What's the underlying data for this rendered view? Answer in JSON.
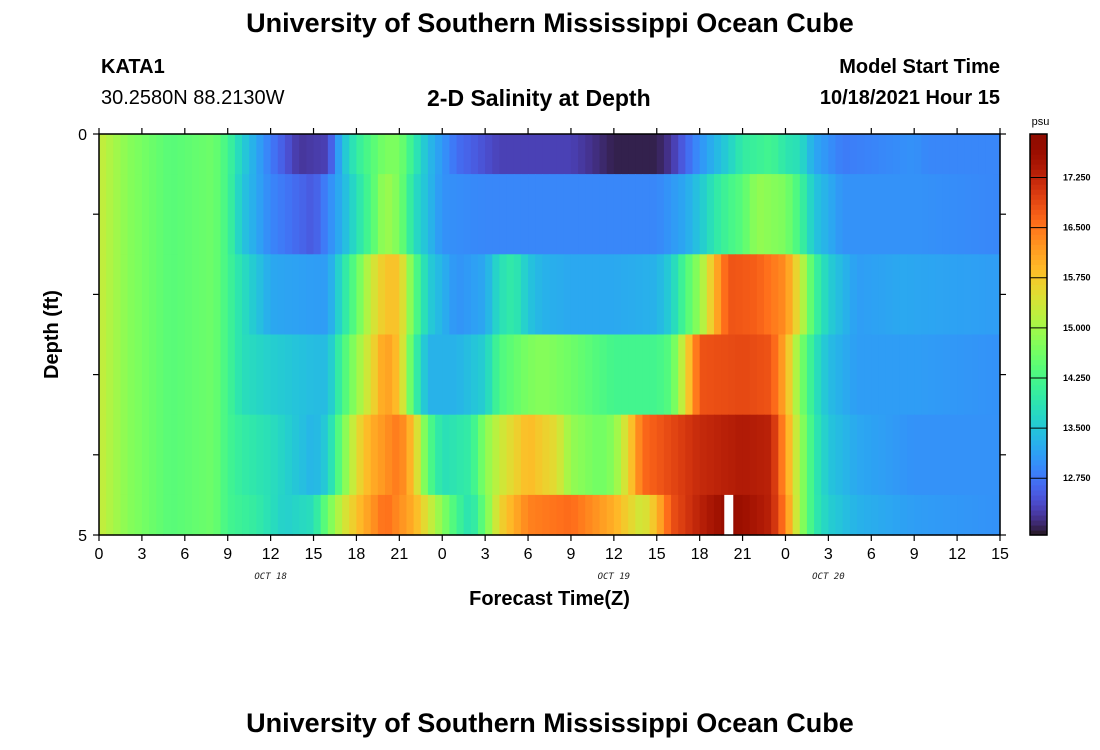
{
  "header": {
    "title": "University of Southern Mississippi Ocean Cube",
    "station": "KATA1",
    "coords": "30.2580N  88.2130W",
    "plot_title": "2-D Salinity at Depth",
    "model_label": "Model Start Time",
    "model_time": "10/18/2021 Hour 15"
  },
  "footer": {
    "title": "University of Southern Mississippi Ocean Cube"
  },
  "colors": {
    "missing": "#ffffff",
    "frame": "#000000"
  },
  "chart_data": {
    "type": "heatmap",
    "title": "2-D Salinity at Depth",
    "xlabel": "Forecast Time(Z)",
    "ylabel": "Depth (ft)",
    "unit": "psu",
    "x_range_hours": [
      0,
      63
    ],
    "y_range": [
      0,
      5
    ],
    "x_tick_hours": [
      0,
      3,
      6,
      9,
      12,
      15,
      18,
      21,
      24,
      27,
      30,
      33,
      36,
      39,
      42,
      45,
      48,
      51,
      54,
      57,
      60,
      63
    ],
    "x_tick_labels": [
      "0",
      "3",
      "6",
      "9",
      "12",
      "15",
      "18",
      "21",
      "0",
      "3",
      "6",
      "9",
      "12",
      "15",
      "18",
      "21",
      "0",
      "3",
      "6",
      "9",
      "12",
      "15"
    ],
    "y_tick_labels": [
      "0",
      "5"
    ],
    "date_labels": [
      {
        "text": "OCT 18",
        "hour": 12
      },
      {
        "text": "OCT 19",
        "hour": 36
      },
      {
        "text": "OCT 20",
        "hour": 51
      }
    ],
    "colorbar": {
      "min": 11.9,
      "max": 17.9,
      "ticks": [
        "12.750",
        "13.500",
        "14.250",
        "15.000",
        "15.750",
        "16.500",
        "17.250"
      ],
      "tick_values": [
        12.75,
        13.5,
        14.25,
        15.0,
        15.75,
        16.5,
        17.25
      ],
      "colormap": "turbo"
    },
    "layers": [
      {
        "depth_top": 0,
        "depth_bottom": 0.5,
        "keyframes": [
          [
            0,
            15.3
          ],
          [
            2,
            14.8
          ],
          [
            5,
            14.4
          ],
          [
            8,
            14.6
          ],
          [
            9,
            14.2
          ],
          [
            10,
            13.6
          ],
          [
            12,
            12.8
          ],
          [
            14,
            12.2
          ],
          [
            16,
            12.3
          ],
          [
            17,
            13.4
          ],
          [
            18,
            14.0
          ],
          [
            20,
            14.7
          ],
          [
            21,
            14.7
          ],
          [
            22,
            14.0
          ],
          [
            23,
            13.4
          ],
          [
            25,
            12.7
          ],
          [
            28,
            12.3
          ],
          [
            33,
            12.3
          ],
          [
            36,
            12.0
          ],
          [
            39,
            12.0
          ],
          [
            40,
            12.2
          ],
          [
            41,
            12.6
          ],
          [
            42,
            13.0
          ],
          [
            43,
            13.3
          ],
          [
            44,
            13.6
          ],
          [
            45,
            14.0
          ],
          [
            47,
            14.2
          ],
          [
            48,
            13.9
          ],
          [
            49,
            13.8
          ],
          [
            50,
            13.2
          ],
          [
            52,
            12.8
          ],
          [
            57,
            13.0
          ],
          [
            58,
            12.9
          ],
          [
            63,
            12.9
          ]
        ]
      },
      {
        "depth_top": 0.5,
        "depth_bottom": 1.5,
        "keyframes": [
          [
            0,
            15.3
          ],
          [
            2,
            14.8
          ],
          [
            5,
            14.4
          ],
          [
            8,
            14.6
          ],
          [
            9,
            14.2
          ],
          [
            10,
            13.5
          ],
          [
            12,
            12.9
          ],
          [
            15,
            12.5
          ],
          [
            17,
            13.3
          ],
          [
            19,
            14.3
          ],
          [
            20,
            15.0
          ],
          [
            21,
            14.7
          ],
          [
            22,
            13.8
          ],
          [
            24,
            13.0
          ],
          [
            27,
            12.9
          ],
          [
            33,
            12.9
          ],
          [
            39,
            12.9
          ],
          [
            41,
            13.2
          ],
          [
            42,
            13.5
          ],
          [
            43,
            13.9
          ],
          [
            44,
            14.2
          ],
          [
            45,
            14.4
          ],
          [
            46,
            14.9
          ],
          [
            48,
            14.7
          ],
          [
            49,
            14.2
          ],
          [
            50,
            13.5
          ],
          [
            52,
            13.0
          ],
          [
            57,
            13.0
          ],
          [
            63,
            12.9
          ]
        ]
      },
      {
        "depth_top": 1.5,
        "depth_bottom": 2.5,
        "keyframes": [
          [
            0,
            15.3
          ],
          [
            2,
            14.8
          ],
          [
            5,
            14.4
          ],
          [
            8,
            14.6
          ],
          [
            9,
            14.2
          ],
          [
            10,
            13.8
          ],
          [
            12,
            13.2
          ],
          [
            15,
            13.1
          ],
          [
            16,
            13.1
          ],
          [
            17,
            13.8
          ],
          [
            18,
            14.5
          ],
          [
            19,
            15.3
          ],
          [
            20,
            15.8
          ],
          [
            21,
            15.8
          ],
          [
            22,
            14.5
          ],
          [
            23,
            13.6
          ],
          [
            25,
            13.0
          ],
          [
            27,
            13.2
          ],
          [
            28,
            13.8
          ],
          [
            29,
            14.0
          ],
          [
            30,
            13.5
          ],
          [
            31,
            13.3
          ],
          [
            33,
            13.2
          ],
          [
            36,
            13.2
          ],
          [
            39,
            13.3
          ],
          [
            40,
            13.6
          ],
          [
            41,
            14.3
          ],
          [
            42,
            14.9
          ],
          [
            43,
            15.9
          ],
          [
            44,
            16.8
          ],
          [
            46,
            16.7
          ],
          [
            48,
            16.3
          ],
          [
            49,
            15.4
          ],
          [
            50,
            14.2
          ],
          [
            51,
            13.6
          ],
          [
            53,
            13.1
          ],
          [
            56,
            13.2
          ],
          [
            63,
            13.1
          ]
        ]
      },
      {
        "depth_top": 2.5,
        "depth_bottom": 3.5,
        "keyframes": [
          [
            0,
            15.3
          ],
          [
            2,
            14.8
          ],
          [
            5,
            14.4
          ],
          [
            8,
            14.6
          ],
          [
            9,
            14.2
          ],
          [
            10,
            13.8
          ],
          [
            12,
            13.6
          ],
          [
            15,
            13.4
          ],
          [
            16,
            13.4
          ],
          [
            17,
            14.2
          ],
          [
            18,
            14.9
          ],
          [
            19,
            15.5
          ],
          [
            20,
            16.2
          ],
          [
            21,
            15.8
          ],
          [
            22,
            14.2
          ],
          [
            23,
            13.3
          ],
          [
            25,
            13.3
          ],
          [
            27,
            13.6
          ],
          [
            28,
            14.3
          ],
          [
            30,
            14.7
          ],
          [
            31,
            14.8
          ],
          [
            33,
            14.6
          ],
          [
            36,
            14.2
          ],
          [
            39,
            14.2
          ],
          [
            40,
            14.4
          ],
          [
            41,
            15.5
          ],
          [
            42,
            16.8
          ],
          [
            45,
            16.9
          ],
          [
            47,
            16.8
          ],
          [
            48,
            16.0
          ],
          [
            49,
            14.8
          ],
          [
            50,
            13.9
          ],
          [
            51,
            13.4
          ],
          [
            53,
            13.1
          ],
          [
            57,
            13.1
          ],
          [
            63,
            13.0
          ]
        ]
      },
      {
        "depth_top": 3.5,
        "depth_bottom": 4.5,
        "keyframes": [
          [
            0,
            15.3
          ],
          [
            2,
            14.8
          ],
          [
            5,
            14.4
          ],
          [
            8,
            14.6
          ],
          [
            9,
            14.2
          ],
          [
            10,
            14.0
          ],
          [
            12,
            13.8
          ],
          [
            15,
            13.3
          ],
          [
            16,
            13.6
          ],
          [
            17,
            14.6
          ],
          [
            18,
            15.5
          ],
          [
            19,
            16.0
          ],
          [
            21,
            16.5
          ],
          [
            22,
            15.8
          ],
          [
            23,
            14.4
          ],
          [
            24,
            13.8
          ],
          [
            26,
            14.0
          ],
          [
            27,
            14.8
          ],
          [
            28,
            15.3
          ],
          [
            29,
            15.6
          ],
          [
            30,
            15.9
          ],
          [
            32,
            15.5
          ],
          [
            33,
            14.9
          ],
          [
            35,
            14.6
          ],
          [
            36,
            14.8
          ],
          [
            37,
            15.6
          ],
          [
            38,
            16.6
          ],
          [
            42,
            17.2
          ],
          [
            45,
            17.4
          ],
          [
            47,
            17.3
          ],
          [
            48,
            16.2
          ],
          [
            49,
            15.0
          ],
          [
            50,
            14.0
          ],
          [
            51,
            13.5
          ],
          [
            53,
            13.2
          ],
          [
            57,
            13.0
          ],
          [
            63,
            13.0
          ]
        ]
      },
      {
        "depth_top": 4.5,
        "depth_bottom": 5.0,
        "keyframes": [
          [
            0,
            15.3
          ],
          [
            2,
            14.8
          ],
          [
            5,
            14.4
          ],
          [
            8,
            14.6
          ],
          [
            9,
            14.2
          ],
          [
            11,
            14.0
          ],
          [
            13,
            13.6
          ],
          [
            15,
            13.8
          ],
          [
            16,
            14.6
          ],
          [
            17,
            15.3
          ],
          [
            18,
            15.8
          ],
          [
            20,
            16.6
          ],
          [
            22,
            16.0
          ],
          [
            23,
            15.4
          ],
          [
            24,
            14.8
          ],
          [
            25,
            14.2
          ],
          [
            26,
            13.8
          ],
          [
            27,
            14.6
          ],
          [
            28,
            15.6
          ],
          [
            30,
            16.4
          ],
          [
            33,
            16.6
          ],
          [
            36,
            16.0
          ],
          [
            38,
            15.3
          ],
          [
            39,
            15.9
          ],
          [
            40,
            16.8
          ],
          [
            42,
            17.3
          ],
          [
            44,
            17.7
          ],
          [
            45,
            17.6
          ],
          [
            47,
            17.3
          ],
          [
            48,
            16.4
          ],
          [
            49,
            15.0
          ],
          [
            50,
            14.0
          ],
          [
            51,
            13.6
          ],
          [
            53,
            13.3
          ],
          [
            57,
            13.1
          ],
          [
            63,
            13.0
          ]
        ]
      }
    ],
    "missing_cells": [
      {
        "hour": 44,
        "depth_top": 4.5,
        "depth_bottom": 5.0
      }
    ]
  }
}
